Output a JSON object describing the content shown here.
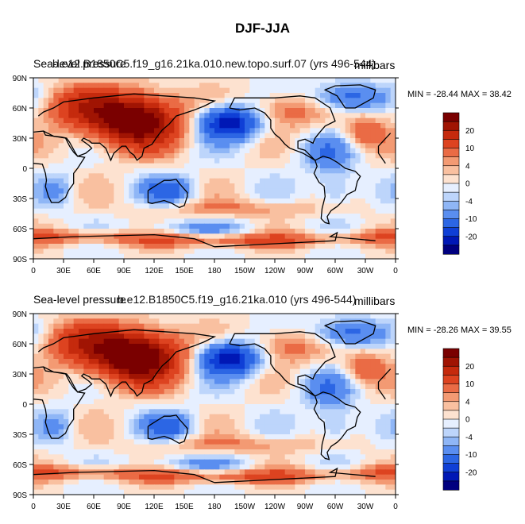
{
  "title": "DJF-JJA",
  "chart_data": [
    {
      "type": "heatmap",
      "title_left": "Sea-level pressure",
      "title_overlay": "b.e12.B1850C5.f19_g16.21ka.010.new.topo.surf.07 (yrs 496-544)",
      "units": "millibars",
      "min_max_label": "MIN = -28.44 MAX =  38.42",
      "min": -28.44,
      "max": 38.42,
      "x_ticks": [
        "0",
        "30E",
        "60E",
        "90E",
        "120E",
        "150E",
        "180",
        "150W",
        "120W",
        "90W",
        "60W",
        "30W",
        "0"
      ],
      "y_ticks": [
        "90N",
        "60N",
        "30N",
        "0",
        "30S",
        "60S",
        "90S"
      ],
      "xlim": [
        0,
        360
      ],
      "ylim": [
        -90,
        90
      ],
      "colorbar_labels": [
        "20",
        "10",
        "4",
        "0",
        "-4",
        "-10",
        "-20"
      ],
      "colorbar_levels": [
        -25,
        -20,
        -15,
        -10,
        -6,
        -4,
        -2,
        0,
        2,
        4,
        6,
        10,
        15,
        20,
        25
      ]
    },
    {
      "type": "heatmap",
      "title_left": "Sea-level pressure",
      "title_overlay": "b.e12.B1850C5.f19_g16.21ka.010 (yrs 496-544)",
      "units": "millibars",
      "min_max_label": "MIN = -28.26 MAX =  39.55",
      "min": -28.26,
      "max": 39.55,
      "x_ticks": [
        "0",
        "30E",
        "60E",
        "90E",
        "120E",
        "150E",
        "180",
        "150W",
        "120W",
        "90W",
        "60W",
        "30W",
        "0"
      ],
      "y_ticks": [
        "90N",
        "60N",
        "30N",
        "0",
        "30S",
        "60S",
        "90S"
      ],
      "xlim": [
        0,
        360
      ],
      "ylim": [
        -90,
        90
      ],
      "colorbar_labels": [
        "20",
        "10",
        "4",
        "0",
        "-4",
        "-10",
        "-20"
      ],
      "colorbar_levels": [
        -25,
        -20,
        -15,
        -10,
        -6,
        -4,
        -2,
        0,
        2,
        4,
        6,
        10,
        15,
        20,
        25
      ]
    }
  ],
  "colors": {
    "palette": [
      "#00007f",
      "#0018b5",
      "#0f3fd6",
      "#2c66e4",
      "#5a8ef0",
      "#8fb6f6",
      "#bdd5fb",
      "#e6efff",
      "#fde2d0",
      "#f9c0a0",
      "#f39a73",
      "#ea6b45",
      "#dd4320",
      "#c52a0d",
      "#a01403",
      "#7a0000"
    ]
  }
}
